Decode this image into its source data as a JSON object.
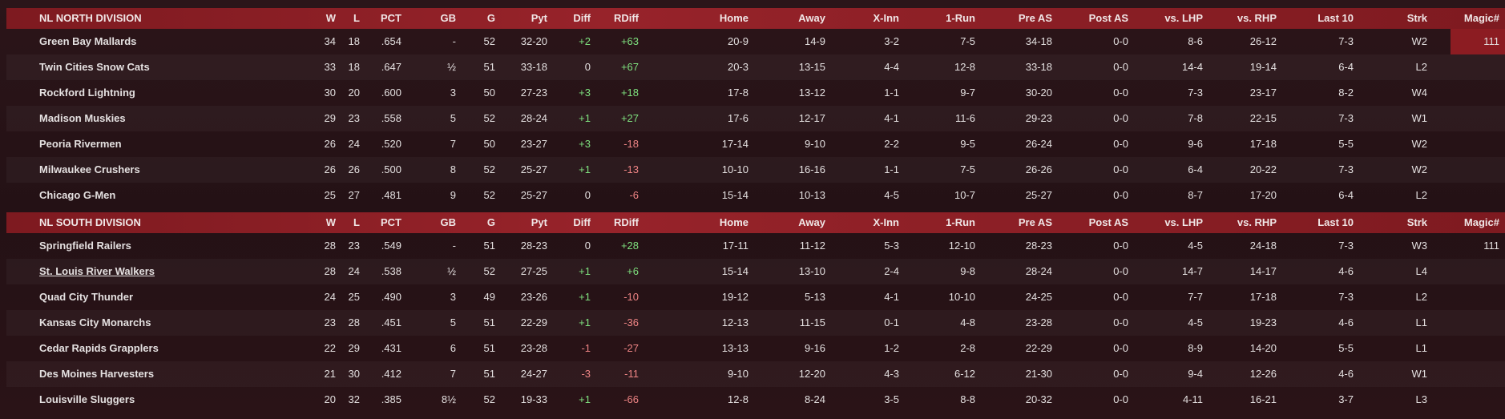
{
  "divisions": [
    {
      "header": [
        "NL NORTH DIVISION",
        "W",
        "L",
        "PCT",
        "GB",
        "G",
        "Pyt",
        "Diff",
        "RDiff",
        "Home",
        "Away",
        "X-Inn",
        "1-Run",
        "Pre AS",
        "Post AS",
        "vs. LHP",
        "vs. RHP",
        "Last 10",
        "Strk",
        "Magic#"
      ],
      "rows": [
        [
          "Green Bay  Mallards",
          "34",
          "18",
          ".654",
          "-",
          "52",
          "32-20",
          "+2",
          "+63",
          "20-9",
          "14-9",
          "3-2",
          "7-5",
          "34-18",
          "0-0",
          "8-6",
          "26-12",
          "7-3",
          "W2",
          "111"
        ],
        [
          "Twin Cities Snow Cats",
          "33",
          "18",
          ".647",
          "½",
          "51",
          "33-18",
          "0",
          "+67",
          "20-3",
          "13-15",
          "4-4",
          "12-8",
          "33-18",
          "0-0",
          "14-4",
          "19-14",
          "6-4",
          "L2",
          null
        ],
        [
          "Rockford Lightning",
          "30",
          "20",
          ".600",
          "3",
          "50",
          "27-23",
          "+3",
          "+18",
          "17-8",
          "13-12",
          "1-1",
          "9-7",
          "30-20",
          "0-0",
          "7-3",
          "23-17",
          "8-2",
          "W4",
          null
        ],
        [
          "Madison Muskies",
          "29",
          "23",
          ".558",
          "5",
          "52",
          "28-24",
          "+1",
          "+27",
          "17-6",
          "12-17",
          "4-1",
          "11-6",
          "29-23",
          "0-0",
          "7-8",
          "22-15",
          "7-3",
          "W1",
          null
        ],
        [
          "Peoria Rivermen",
          "26",
          "24",
          ".520",
          "7",
          "50",
          "23-27",
          "+3",
          "-18",
          "17-14",
          "9-10",
          "2-2",
          "9-5",
          "26-24",
          "0-0",
          "9-6",
          "17-18",
          "5-5",
          "W2",
          null
        ],
        [
          "Milwaukee Crushers",
          "26",
          "26",
          ".500",
          "8",
          "52",
          "25-27",
          "+1",
          "-13",
          "10-10",
          "16-16",
          "1-1",
          "7-5",
          "26-26",
          "0-0",
          "6-4",
          "20-22",
          "7-3",
          "W2",
          null
        ],
        [
          "Chicago G-Men",
          "25",
          "27",
          ".481",
          "9",
          "52",
          "25-27",
          "0",
          "-6",
          "15-14",
          "10-13",
          "4-5",
          "10-7",
          "25-27",
          "0-0",
          "8-7",
          "17-20",
          "6-4",
          "L2",
          null
        ]
      ]
    },
    {
      "header": [
        "NL SOUTH DIVISION",
        "W",
        "L",
        "PCT",
        "GB",
        "G",
        "Pyt",
        "Diff",
        "RDiff",
        "Home",
        "Away",
        "X-Inn",
        "1-Run",
        "Pre AS",
        "Post AS",
        "vs. LHP",
        "vs. RHP",
        "Last 10",
        "Strk",
        "Magic#"
      ],
      "rows": [
        [
          "Springfield Railers",
          "28",
          "23",
          ".549",
          "-",
          "51",
          "28-23",
          "0",
          "+28",
          "17-11",
          "11-12",
          "5-3",
          "12-10",
          "28-23",
          "0-0",
          "4-5",
          "24-18",
          "7-3",
          "W3",
          "111"
        ],
        [
          "St. Louis River Walkers",
          "28",
          "24",
          ".538",
          "½",
          "52",
          "27-25",
          "+1",
          "+6",
          "15-14",
          "13-10",
          "2-4",
          "9-8",
          "28-24",
          "0-0",
          "14-7",
          "14-17",
          "4-6",
          "L4",
          null
        ],
        [
          "Quad City Thunder",
          "24",
          "25",
          ".490",
          "3",
          "49",
          "23-26",
          "+1",
          "-10",
          "19-12",
          "5-13",
          "4-1",
          "10-10",
          "24-25",
          "0-0",
          "7-7",
          "17-18",
          "7-3",
          "L2",
          null
        ],
        [
          "Kansas City Monarchs",
          "23",
          "28",
          ".451",
          "5",
          "51",
          "22-29",
          "+1",
          "-36",
          "12-13",
          "11-15",
          "0-1",
          "4-8",
          "23-28",
          "0-0",
          "4-5",
          "19-23",
          "4-6",
          "L1",
          null
        ],
        [
          "Cedar Rapids Grapplers",
          "22",
          "29",
          ".431",
          "6",
          "51",
          "23-28",
          "-1",
          "-27",
          "13-13",
          "9-16",
          "1-2",
          "2-8",
          "22-29",
          "0-0",
          "8-9",
          "14-20",
          "5-5",
          "L1",
          null
        ],
        [
          "Des Moines Harvesters",
          "21",
          "30",
          ".412",
          "7",
          "51",
          "24-27",
          "-3",
          "-11",
          "9-10",
          "12-20",
          "4-3",
          "6-12",
          "21-30",
          "0-0",
          "9-4",
          "12-26",
          "4-6",
          "W1",
          null
        ],
        [
          "Louisville Sluggers",
          "20",
          "32",
          ".385",
          "8½",
          "52",
          "19-33",
          "+1",
          "-66",
          "12-8",
          "8-24",
          "3-5",
          "8-8",
          "20-32",
          "0-0",
          "4-11",
          "16-21",
          "3-7",
          "L3",
          null
        ]
      ]
    }
  ]
}
